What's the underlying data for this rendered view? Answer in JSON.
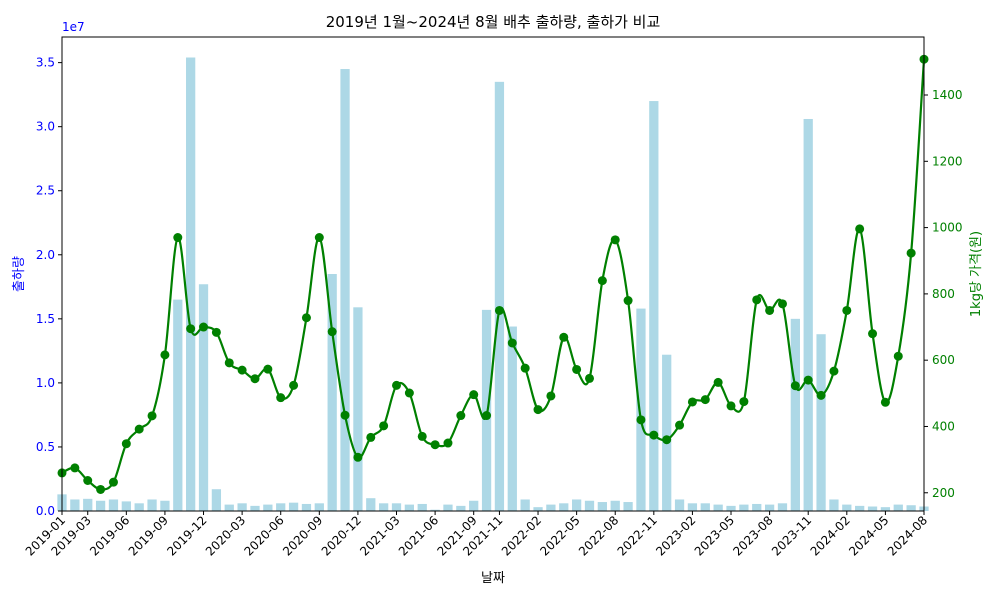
{
  "chart_data": {
    "type": "bar+line",
    "title": "2019년 1월~2024년 8월 배추 출하량, 출하가 비교",
    "xlabel": "날짜",
    "y1label": "출하량",
    "y2label": "1kg당 가격(원)",
    "y1_offset": "1e7",
    "y1_color": "#0000ff",
    "y2_color": "#008000",
    "bar_color": "#add8e6",
    "line_color": "#008000",
    "y1lim": [
      0,
      37000000
    ],
    "y2lim": [
      145,
      1575
    ],
    "y1_ticks": [
      "0.0",
      "0.5",
      "1.0",
      "1.5",
      "2.0",
      "2.5",
      "3.0",
      "3.5"
    ],
    "y1_tick_values": [
      0,
      5000000,
      10000000,
      15000000,
      20000000,
      25000000,
      30000000,
      35000000
    ],
    "y2_ticks": [
      "200",
      "400",
      "600",
      "800",
      "1000",
      "1200",
      "1400"
    ],
    "y2_tick_values": [
      200,
      400,
      600,
      800,
      1000,
      1200,
      1400
    ],
    "x_ticks": [
      "2019-01",
      "2019-03",
      "2019-06",
      "2019-09",
      "2019-12",
      "2020-03",
      "2020-06",
      "2020-09",
      "2020-12",
      "2021-03",
      "2021-06",
      "2021-09",
      "2021-11",
      "2022-02",
      "2022-05",
      "2022-08",
      "2022-11",
      "2023-02",
      "2023-05",
      "2023-08",
      "2023-11",
      "2024-02",
      "2024-05",
      "2024-08"
    ],
    "grid": false,
    "dates": [
      "2019-01",
      "2019-02",
      "2019-03",
      "2019-04",
      "2019-05",
      "2019-06",
      "2019-07",
      "2019-08",
      "2019-09",
      "2019-10",
      "2019-11",
      "2019-12",
      "2020-01",
      "2020-02",
      "2020-03",
      "2020-04",
      "2020-05",
      "2020-06",
      "2020-07",
      "2020-08",
      "2020-09",
      "2020-10",
      "2020-11",
      "2020-12",
      "2021-01",
      "2021-02",
      "2021-03",
      "2021-04",
      "2021-05",
      "2021-06",
      "2021-07",
      "2021-08",
      "2021-09",
      "2021-10",
      "2021-11",
      "2021-12",
      "2022-01",
      "2022-02",
      "2022-03",
      "2022-04",
      "2022-05",
      "2022-06",
      "2022-07",
      "2022-08",
      "2022-09",
      "2022-10",
      "2022-11",
      "2022-12",
      "2023-01",
      "2023-02",
      "2023-03",
      "2023-04",
      "2023-05",
      "2023-06",
      "2023-07",
      "2023-08",
      "2023-09",
      "2023-10",
      "2023-11",
      "2023-12",
      "2024-01",
      "2024-02",
      "2024-03",
      "2024-04",
      "2024-05",
      "2024-06",
      "2024-07",
      "2024-08"
    ],
    "shipments": [
      1300000,
      900000,
      950000,
      800000,
      900000,
      750000,
      600000,
      900000,
      800000,
      16500000,
      35400000,
      17700000,
      1700000,
      500000,
      600000,
      400000,
      500000,
      600000,
      650000,
      550000,
      600000,
      18500000,
      34500000,
      15900000,
      1000000,
      600000,
      600000,
      500000,
      550000,
      100000,
      500000,
      400000,
      800000,
      15700000,
      33500000,
      14400000,
      900000,
      300000,
      500000,
      600000,
      900000,
      800000,
      700000,
      800000,
      700000,
      15800000,
      32000000,
      12200000,
      900000,
      600000,
      600000,
      500000,
      400000,
      500000,
      550000,
      500000,
      600000,
      15000000,
      30600000,
      13800000,
      900000,
      500000,
      400000,
      350000,
      300000,
      500000,
      450000,
      350000
    ],
    "price": [
      260,
      275,
      237,
      210,
      232,
      348,
      392,
      432,
      616,
      970,
      695,
      700,
      684,
      592,
      570,
      544,
      573,
      487,
      524,
      728,
      970,
      686,
      434,
      307,
      367,
      402,
      524,
      501,
      370,
      345,
      350,
      433,
      496,
      433,
      750,
      652,
      576,
      451,
      492,
      669,
      572,
      545,
      840,
      963,
      780,
      420,
      374,
      360,
      404,
      474,
      481,
      533,
      462,
      475,
      782,
      750,
      770,
      523,
      540,
      494,
      567,
      750,
      996,
      680,
      473,
      612,
      923,
      1508
    ],
    "price_note_order": "see script mapping"
  }
}
